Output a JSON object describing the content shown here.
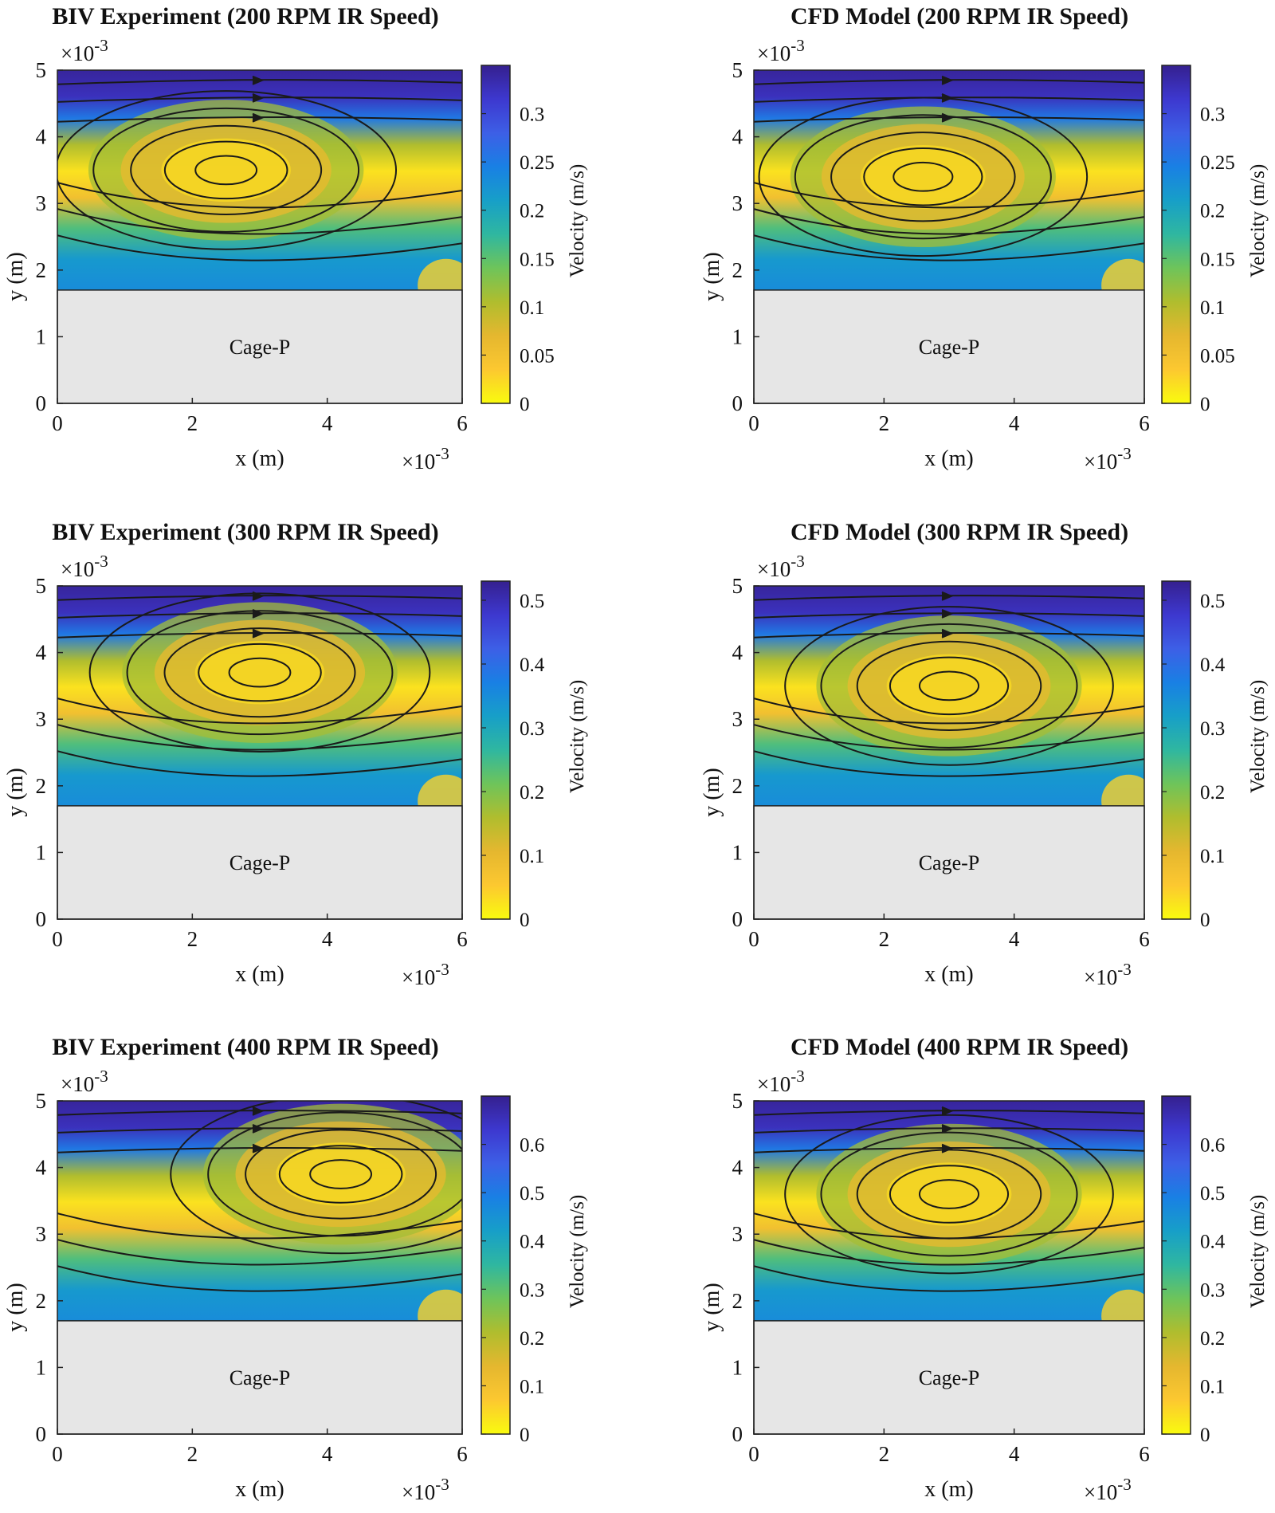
{
  "figure": {
    "common": {
      "cage_label": "Cage-P"
    }
  },
  "colors": {
    "colormap": [
      "#f9fb0e",
      "#fcc830",
      "#e5b72f",
      "#b0bd2e",
      "#6ec45a",
      "#2fb7a0",
      "#179fc8",
      "#1980e4",
      "#3d5fe6",
      "#3d38cf",
      "#35208f"
    ],
    "cage_fill": "#e6e6e6",
    "streamline": "#1a1a1a"
  },
  "chart_data": [
    {
      "type": "contour+streamline",
      "title": "BIV Experiment (200 RPM IR Speed)",
      "xlabel": "x (m)",
      "ylabel": "y (m)",
      "xlim": [
        0,
        0.006
      ],
      "ylim": [
        0,
        0.005
      ],
      "x_ticks": [
        "0",
        "2",
        "4",
        "6"
      ],
      "y_ticks": [
        "0",
        "1",
        "2",
        "3",
        "4",
        "5"
      ],
      "x_exponent_base": "×10",
      "x_exponent_power": "-3",
      "y_exponent_base": "×10",
      "y_exponent_power": "-3",
      "cage_region": {
        "x": [
          0,
          0.006
        ],
        "y": [
          0,
          0.0017
        ]
      },
      "colorbar": {
        "label": "Velocity (m/s)",
        "range": [
          0,
          0.35
        ],
        "ticks": [
          "0",
          "0.05",
          "0.1",
          "0.15",
          "0.2",
          "0.25",
          "0.3"
        ]
      },
      "vortex_center_mm": [
        2.5,
        3.5
      ]
    },
    {
      "type": "contour+streamline",
      "title": "CFD Model (200 RPM IR Speed)",
      "xlabel": "x (m)",
      "ylabel": "y (m)",
      "xlim": [
        0,
        0.006
      ],
      "ylim": [
        0,
        0.005
      ],
      "x_ticks": [
        "0",
        "2",
        "4",
        "6"
      ],
      "y_ticks": [
        "0",
        "1",
        "2",
        "3",
        "4",
        "5"
      ],
      "x_exponent_base": "×10",
      "x_exponent_power": "-3",
      "y_exponent_base": "×10",
      "y_exponent_power": "-3",
      "cage_region": {
        "x": [
          0,
          0.006
        ],
        "y": [
          0,
          0.0017
        ]
      },
      "colorbar": {
        "label": "Velocity (m/s)",
        "range": [
          0,
          0.35
        ],
        "ticks": [
          "0",
          "0.05",
          "0.1",
          "0.15",
          "0.2",
          "0.25",
          "0.3"
        ]
      },
      "vortex_center_mm": [
        2.6,
        3.4
      ]
    },
    {
      "type": "contour+streamline",
      "title": "BIV Experiment (300 RPM IR Speed)",
      "xlabel": "x (m)",
      "ylabel": "y (m)",
      "xlim": [
        0,
        0.006
      ],
      "ylim": [
        0,
        0.005
      ],
      "x_ticks": [
        "0",
        "2",
        "4",
        "6"
      ],
      "y_ticks": [
        "0",
        "1",
        "2",
        "3",
        "4",
        "5"
      ],
      "x_exponent_base": "×10",
      "x_exponent_power": "-3",
      "y_exponent_base": "×10",
      "y_exponent_power": "-3",
      "cage_region": {
        "x": [
          0,
          0.006
        ],
        "y": [
          0,
          0.0017
        ]
      },
      "colorbar": {
        "label": "Velocity (m/s)",
        "range": [
          0,
          0.53
        ],
        "ticks": [
          "0",
          "0.1",
          "0.2",
          "0.3",
          "0.4",
          "0.5"
        ]
      },
      "vortex_center_mm": [
        3.0,
        3.7
      ]
    },
    {
      "type": "contour+streamline",
      "title": "CFD Model (300 RPM IR Speed)",
      "xlabel": "x (m)",
      "ylabel": "y (m)",
      "xlim": [
        0,
        0.006
      ],
      "ylim": [
        0,
        0.005
      ],
      "x_ticks": [
        "0",
        "2",
        "4",
        "6"
      ],
      "y_ticks": [
        "0",
        "1",
        "2",
        "3",
        "4",
        "5"
      ],
      "x_exponent_base": "×10",
      "x_exponent_power": "-3",
      "y_exponent_base": "×10",
      "y_exponent_power": "-3",
      "cage_region": {
        "x": [
          0,
          0.006
        ],
        "y": [
          0,
          0.0017
        ]
      },
      "colorbar": {
        "label": "Velocity (m/s)",
        "range": [
          0,
          0.53
        ],
        "ticks": [
          "0",
          "0.1",
          "0.2",
          "0.3",
          "0.4",
          "0.5"
        ]
      },
      "vortex_center_mm": [
        3.0,
        3.5
      ]
    },
    {
      "type": "contour+streamline",
      "title": "BIV Experiment (400 RPM IR Speed)",
      "xlabel": "x (m)",
      "ylabel": "y (m)",
      "xlim": [
        0,
        0.006
      ],
      "ylim": [
        0,
        0.005
      ],
      "x_ticks": [
        "0",
        "2",
        "4",
        "6"
      ],
      "y_ticks": [
        "0",
        "1",
        "2",
        "3",
        "4",
        "5"
      ],
      "x_exponent_base": "×10",
      "x_exponent_power": "-3",
      "y_exponent_base": "×10",
      "y_exponent_power": "-3",
      "cage_region": {
        "x": [
          0,
          0.006
        ],
        "y": [
          0,
          0.0017
        ]
      },
      "colorbar": {
        "label": "Velocity (m/s)",
        "range": [
          0,
          0.7
        ],
        "ticks": [
          "0",
          "0.1",
          "0.2",
          "0.3",
          "0.4",
          "0.5",
          "0.6"
        ]
      },
      "vortex_center_mm": [
        4.2,
        3.9
      ]
    },
    {
      "type": "contour+streamline",
      "title": "CFD Model (400 RPM IR Speed)",
      "xlabel": "x (m)",
      "ylabel": "y (m)",
      "xlim": [
        0,
        0.006
      ],
      "ylim": [
        0,
        0.005
      ],
      "x_ticks": [
        "0",
        "2",
        "4",
        "6"
      ],
      "y_ticks": [
        "0",
        "1",
        "2",
        "3",
        "4",
        "5"
      ],
      "x_exponent_base": "×10",
      "x_exponent_power": "-3",
      "y_exponent_base": "×10",
      "y_exponent_power": "-3",
      "cage_region": {
        "x": [
          0,
          0.006
        ],
        "y": [
          0,
          0.0017
        ]
      },
      "colorbar": {
        "label": "Velocity (m/s)",
        "range": [
          0,
          0.7
        ],
        "ticks": [
          "0",
          "0.1",
          "0.2",
          "0.3",
          "0.4",
          "0.5",
          "0.6"
        ]
      },
      "vortex_center_mm": [
        3.0,
        3.6
      ]
    }
  ]
}
